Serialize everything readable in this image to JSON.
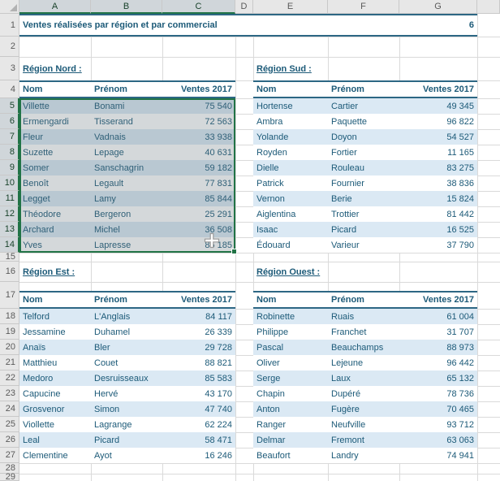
{
  "title": {
    "text": "Ventes réalisées par région et par commercial",
    "value": "6"
  },
  "column_headers": [
    "A",
    "B",
    "C",
    "D",
    "E",
    "F",
    "G"
  ],
  "row_headers": [
    "1",
    "2",
    "3",
    "4",
    "5",
    "6",
    "7",
    "8",
    "9",
    "10",
    "11",
    "12",
    "13",
    "14",
    "15",
    "16",
    "17",
    "18",
    "19",
    "20",
    "21",
    "22",
    "23",
    "24",
    "25",
    "26",
    "27",
    "28",
    "29"
  ],
  "table_columns": {
    "nom": "Nom",
    "prenom": "Prénom",
    "ventes": "Ventes 2017"
  },
  "tables": [
    {
      "id": "nord",
      "label": "Région Nord :",
      "rows": [
        [
          "Villette",
          "Bonami",
          "75 540"
        ],
        [
          "Ermengardi",
          "Tisserand",
          "72 563"
        ],
        [
          "Fleur",
          "Vadnais",
          "33 938"
        ],
        [
          "Suzette",
          "Lepage",
          "40 631"
        ],
        [
          "Somer",
          "Sanschagrin",
          "59 182"
        ],
        [
          "Benoît",
          "Legault",
          "77 831"
        ],
        [
          "Legget",
          "Lamy",
          "85 844"
        ],
        [
          "Théodore",
          "Bergeron",
          "25 291"
        ],
        [
          "Archard",
          "Michel",
          "36 508"
        ],
        [
          "Yves",
          "Lapresse",
          "85 185"
        ]
      ]
    },
    {
      "id": "sud",
      "label": "Région Sud :",
      "rows": [
        [
          "Hortense",
          "Cartier",
          "49 345"
        ],
        [
          "Ambra",
          "Paquette",
          "96 822"
        ],
        [
          "Yolande",
          "Doyon",
          "54 527"
        ],
        [
          "Royden",
          "Fortier",
          "11 165"
        ],
        [
          "Dielle",
          "Rouleau",
          "83 275"
        ],
        [
          "Patrick",
          "Fournier",
          "38 836"
        ],
        [
          "Vernon",
          "Berie",
          "15 824"
        ],
        [
          "Aiglentina",
          "Trottier",
          "81 442"
        ],
        [
          "Isaac",
          "Picard",
          "16 525"
        ],
        [
          "Édouard",
          "Varieur",
          "37 790"
        ]
      ]
    },
    {
      "id": "est",
      "label": "Région Est :",
      "rows": [
        [
          "Telford",
          "L'Anglais",
          "84 117"
        ],
        [
          "Jessamine",
          "Duhamel",
          "26 339"
        ],
        [
          "Anaïs",
          "Bler",
          "29 728"
        ],
        [
          "Matthieu",
          "Couet",
          "88 821"
        ],
        [
          "Medoro",
          "Desruisseaux",
          "85 583"
        ],
        [
          "Capucine",
          "Hervé",
          "43 170"
        ],
        [
          "Grosvenor",
          "Simon",
          "47 740"
        ],
        [
          "Viollette",
          "Lagrange",
          "62 224"
        ],
        [
          "Leal",
          "Picard",
          "58 471"
        ],
        [
          "Clementine",
          "Ayot",
          "16 246"
        ]
      ]
    },
    {
      "id": "ouest",
      "label": "Région Ouest :",
      "rows": [
        [
          "Robinette",
          "Ruais",
          "61 004"
        ],
        [
          "Philippe",
          "Franchet",
          "31 707"
        ],
        [
          "Pascal",
          "Beauchamps",
          "88 973"
        ],
        [
          "Oliver",
          "Lejeune",
          "96 442"
        ],
        [
          "Serge",
          "Laux",
          "65 132"
        ],
        [
          "Chapin",
          "Dupéré",
          "78 736"
        ],
        [
          "Anton",
          "Fugère",
          "70 465"
        ],
        [
          "Ranger",
          "Neufville",
          "93 712"
        ],
        [
          "Delmar",
          "Fremont",
          "63 063"
        ],
        [
          "Beaufort",
          "Landry",
          "74 941"
        ]
      ]
    }
  ],
  "colors": {
    "text_blue": "#1c5a78",
    "border_blue": "#2d6784",
    "band_blue": "#dbe9f4",
    "header_gray": "#e7e7e7",
    "selection_green": "#217346"
  }
}
